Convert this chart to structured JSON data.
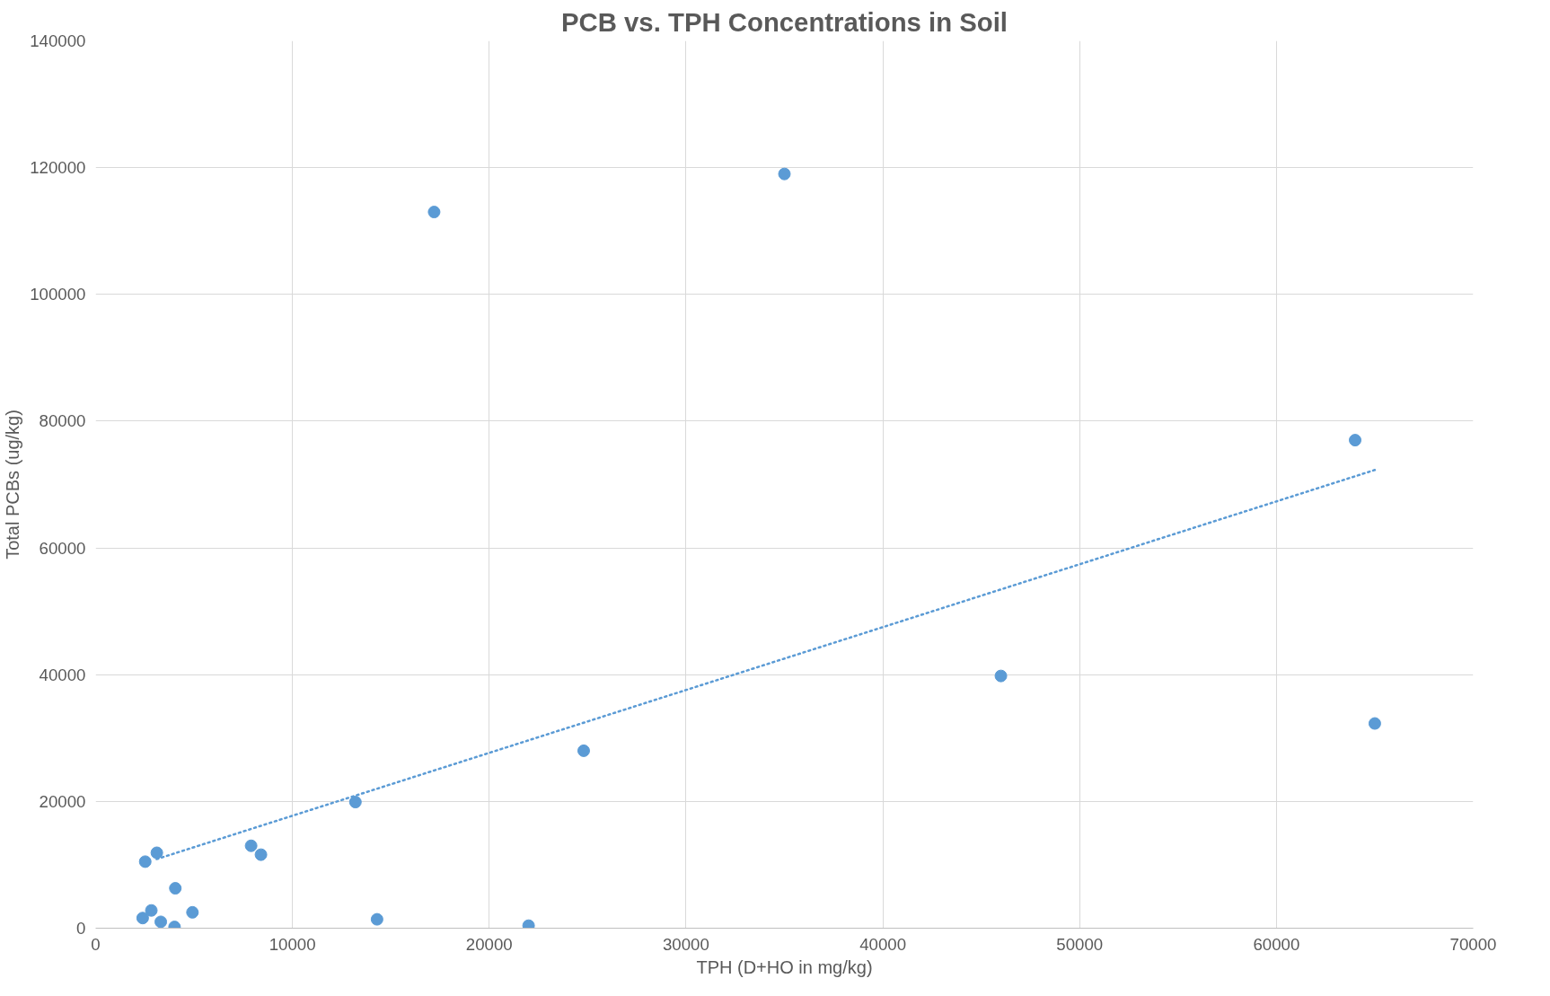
{
  "chart_data": {
    "type": "scatter",
    "title": "PCB vs. TPH Concentrations in Soil",
    "xlabel": "TPH (D+HO in mg/kg)",
    "ylabel": "Total PCBs (ug/kg)",
    "xlim": [
      0,
      70000
    ],
    "ylim": [
      0,
      140000
    ],
    "xticks": [
      0,
      10000,
      20000,
      30000,
      40000,
      50000,
      60000,
      70000
    ],
    "yticks": [
      0,
      20000,
      40000,
      60000,
      80000,
      100000,
      120000,
      140000
    ],
    "grid": true,
    "series": [
      {
        "color": "#5b9bd5",
        "marker": "circle",
        "x": [
          2520,
          3110,
          7900,
          8400,
          13200,
          4050,
          2390,
          2830,
          3310,
          4010,
          4920,
          14300,
          22000,
          17200,
          35000,
          64000,
          46000,
          65000,
          24800
        ],
        "values": [
          10500,
          11900,
          13000,
          11600,
          19900,
          6300,
          1600,
          2800,
          1000,
          200,
          2500,
          1400,
          400,
          113000,
          119000,
          77000,
          39800,
          32300,
          28000
        ]
      },
      {
        "type": "line",
        "color": "#5b9bd5",
        "line_style": "dotted",
        "marker": "none",
        "x": [
          3100,
          65000
        ],
        "values": [
          10900,
          72300
        ]
      }
    ]
  }
}
